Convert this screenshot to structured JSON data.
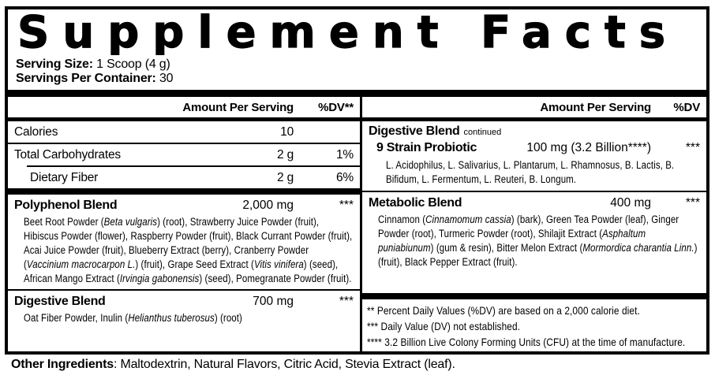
{
  "title": "Supplement Facts",
  "serving": {
    "size_label": "Serving Size:",
    "size_value": "1 Scoop (4 g)",
    "container_label": "Servings Per Container:",
    "container_value": "30"
  },
  "columns": {
    "left": {
      "header": {
        "amount": "Amount Per Serving",
        "dv": "%DV**"
      },
      "rows": [
        {
          "name": "Calories",
          "amount": "10",
          "dv": ""
        },
        {
          "name": "Total Carbohydrates",
          "amount": "2 g",
          "dv": "1%"
        },
        {
          "name": "Dietary Fiber",
          "amount": "2 g",
          "dv": "6%"
        }
      ],
      "blends": [
        {
          "name": "Polyphenol Blend",
          "amount": "2,000 mg",
          "dv": "***",
          "desc": [
            {
              "t": "Beet Root Powder ("
            },
            {
              "t": "Beta vulgaris",
              "i": true
            },
            {
              "t": ") (root), Strawberry Juice Powder (fruit), Hibiscus Powder (flower), Raspberry Powder (fruit), Black Currant Powder (fruit), Acai Juice Powder (fruit), Blueberry Extract (berry), Cranberry Powder ("
            },
            {
              "t": "Vaccinium macrocarpon L.",
              "i": true
            },
            {
              "t": ") (fruit), Grape Seed Extract ("
            },
            {
              "t": "Vitis vinifera",
              "i": true
            },
            {
              "t": ") (seed), African Mango Extract ("
            },
            {
              "t": "Irvingia gabonensis",
              "i": true
            },
            {
              "t": ") (seed), Pomegranate Powder (fruit)."
            }
          ]
        },
        {
          "name": "Digestive Blend",
          "amount": "700 mg",
          "dv": "***",
          "desc": [
            {
              "t": "Oat Fiber Powder, Inulin ("
            },
            {
              "t": "Helianthus tuberosus",
              "i": true
            },
            {
              "t": ") (root)"
            }
          ]
        }
      ]
    },
    "right": {
      "header": {
        "amount": "Amount Per Serving",
        "dv": "%DV"
      },
      "section": {
        "name": "Digestive Blend",
        "continued": "continued",
        "sub_name": "9 Strain Probiotic",
        "sub_amount": "100 mg (3.2 Billion****)",
        "sub_dv": "***",
        "desc": [
          {
            "t": "L. Acidophilus, L. Salivarius, L. Plantarum, L. Rhamnosus, B. Lactis, B. Bifidum, L. Fermentum, L. Reuteri, B. Longum."
          }
        ]
      },
      "blend": {
        "name": "Metabolic Blend",
        "amount": "400 mg",
        "dv": "***",
        "desc": [
          {
            "t": "Cinnamon ("
          },
          {
            "t": "Cinnamomum cassia",
            "i": true
          },
          {
            "t": ") (bark), Green Tea Powder (leaf), Ginger Powder (root), Turmeric Powder (root), Shilajit Extract ("
          },
          {
            "t": "Asphaltum puniabiunum",
            "i": true
          },
          {
            "t": ") (gum & resin), Bitter Melon Extract ("
          },
          {
            "t": "Mormordica charantia Linn.",
            "i": true
          },
          {
            "t": ") (fruit), Black Pepper Extract (fruit)."
          }
        ]
      },
      "footnotes": [
        "** Percent Daily Values (%DV) are based on a 2,000 calorie diet.",
        "*** Daily Value (DV) not established.",
        "**** 3.2 Billion Live Colony Forming Units (CFU) at the time of manufacture."
      ]
    }
  },
  "other_ingredients": {
    "label": "Other Ingredients",
    "value": ": Maltodextrin, Natural Flavors, Citric Acid, Stevia Extract (leaf)."
  },
  "colors": {
    "ink": "#000000",
    "background": "#ffffff"
  }
}
